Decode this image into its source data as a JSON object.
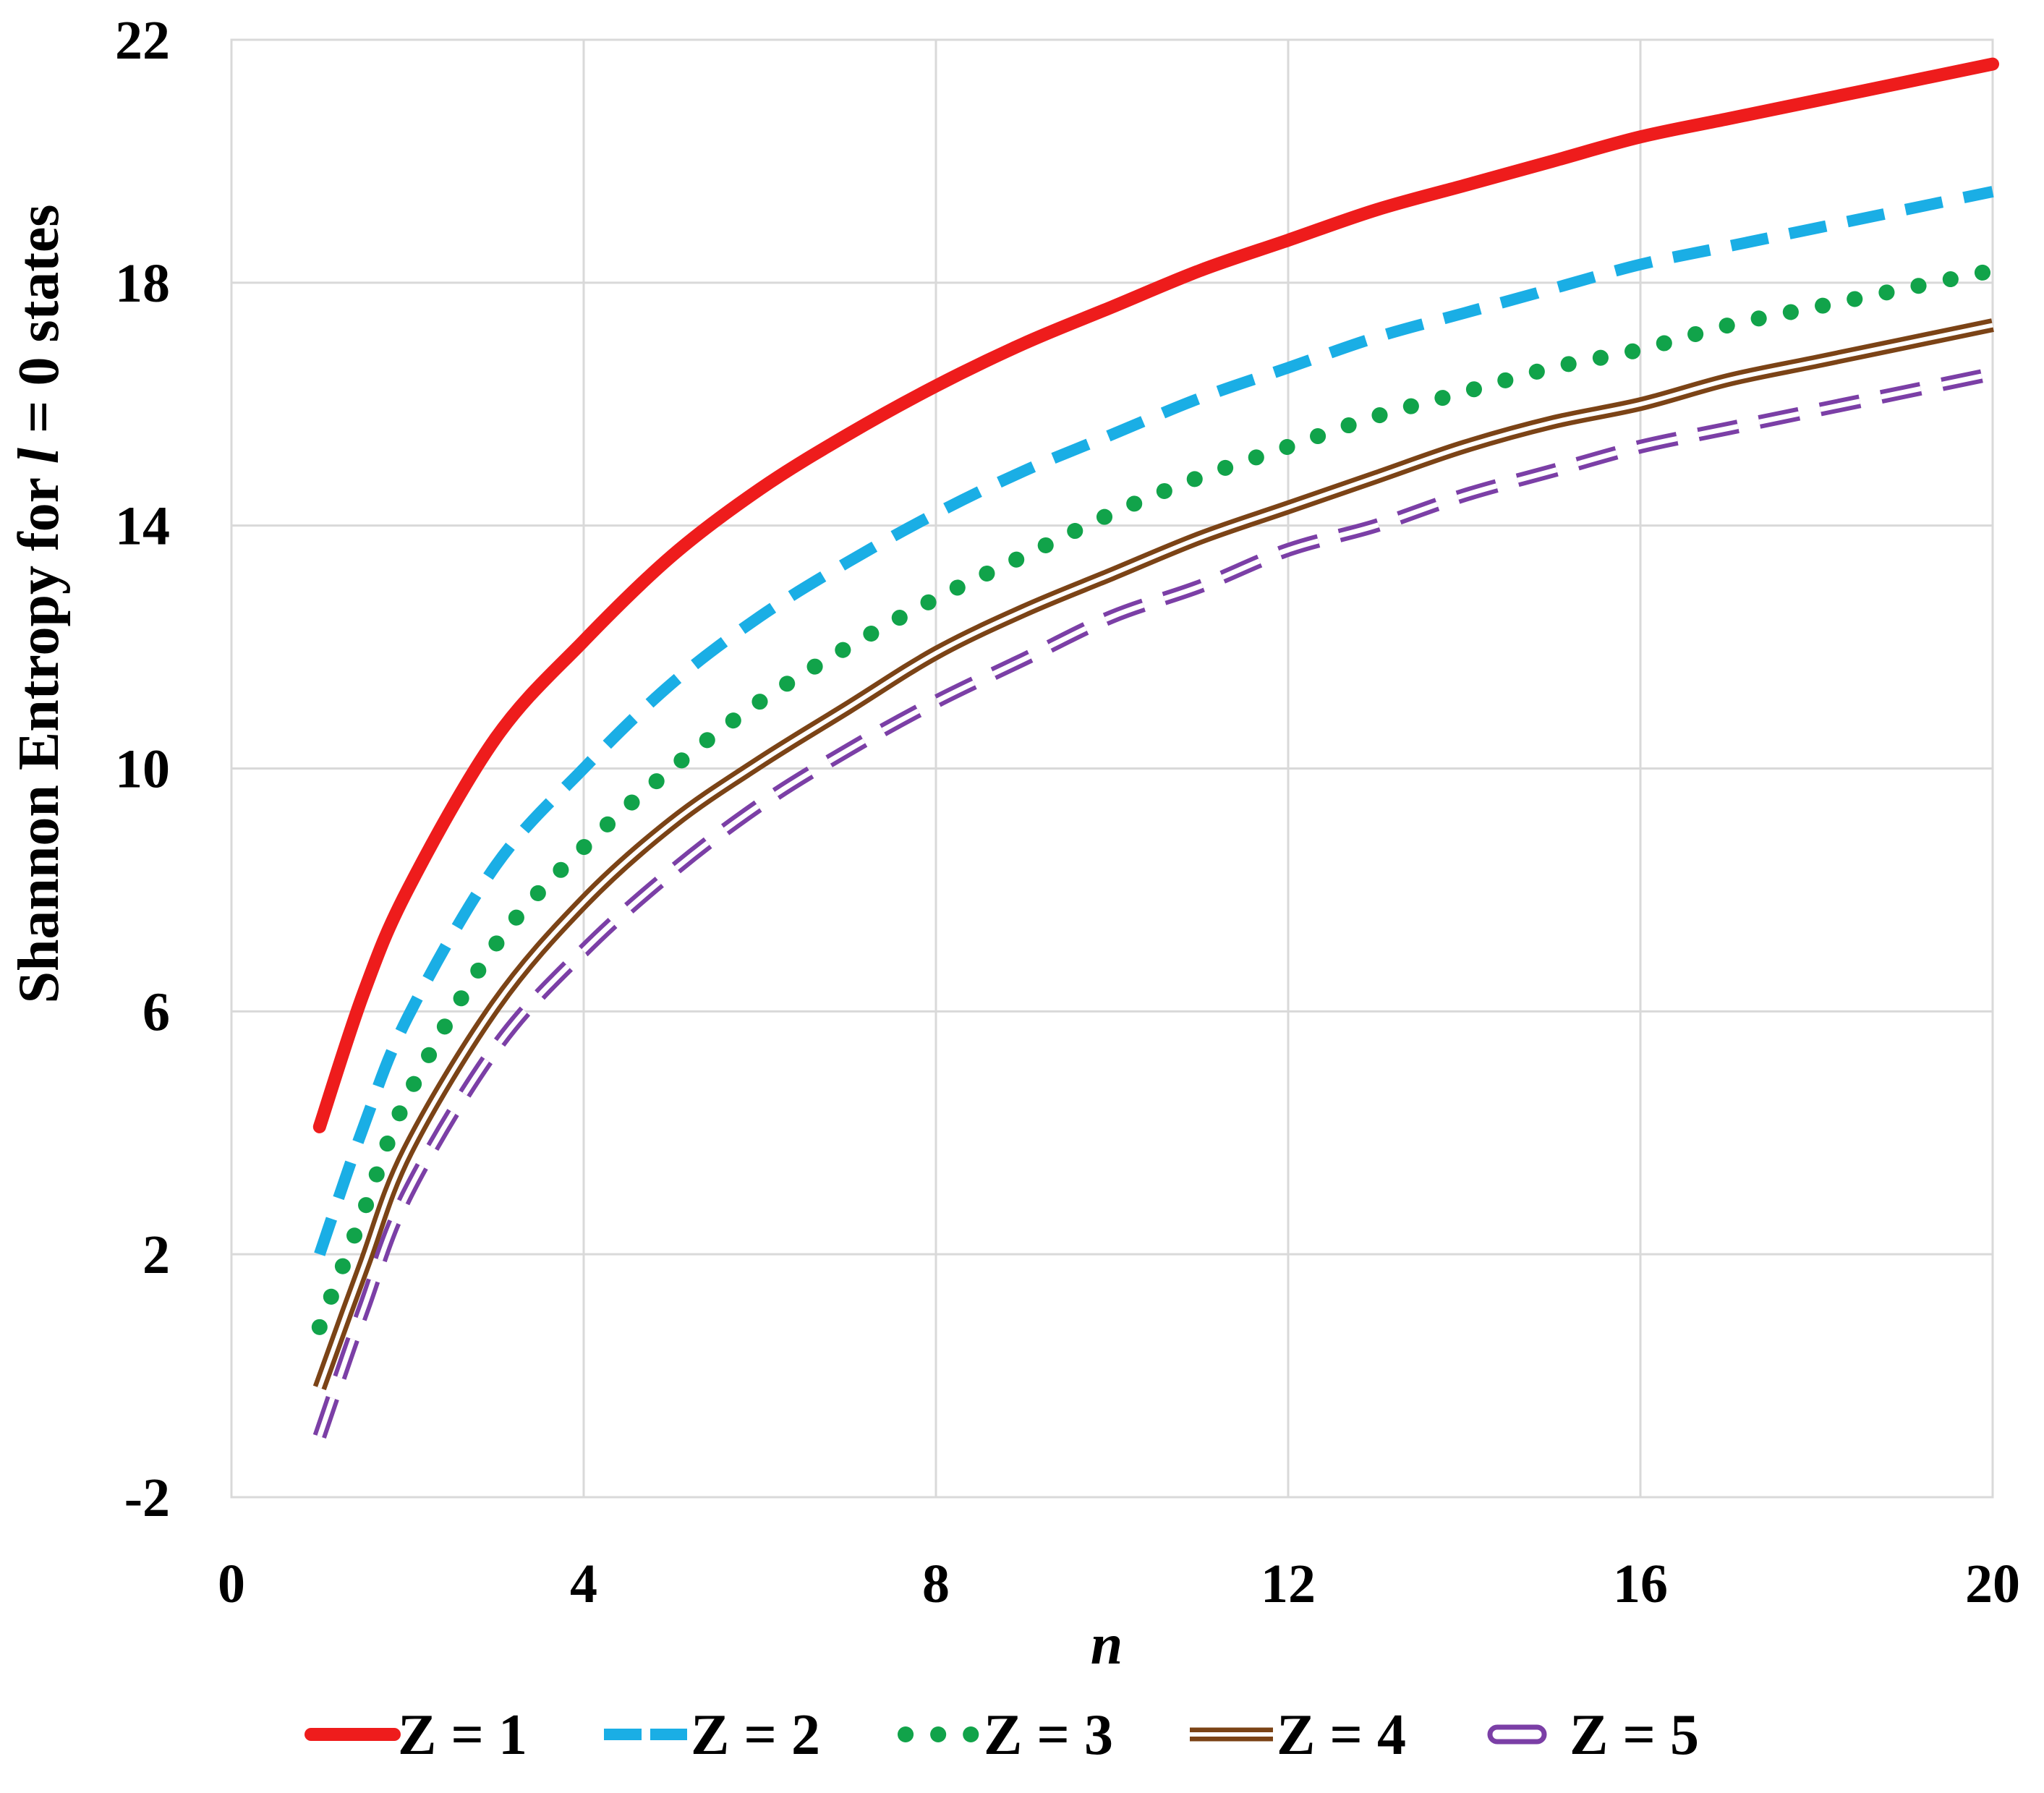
{
  "chart_data": {
    "type": "line",
    "title": "",
    "xlabel": "n",
    "ylabel_parts": [
      "Shannon Entropy for ",
      "l",
      " = 0 states"
    ],
    "xlim": [
      0,
      20
    ],
    "ylim": [
      -2,
      22
    ],
    "xticks": [
      "0",
      "4",
      "8",
      "12",
      "16",
      "20"
    ],
    "yticks": [
      "-2",
      "2",
      "6",
      "10",
      "14",
      "18",
      "22"
    ],
    "grid": true,
    "legend_position": "bottom",
    "x": [
      1,
      1.5,
      2,
      3,
      4,
      5,
      6,
      7,
      8,
      9,
      10,
      11,
      12,
      13,
      14,
      15,
      16,
      17,
      18,
      19,
      20
    ],
    "series": [
      {
        "name": "Z = 1",
        "style": "solid",
        "color": "#ee1c1c",
        "values": [
          4.1,
          6.3,
          8.0,
          10.5,
          12.1,
          13.5,
          14.6,
          15.5,
          16.3,
          17.0,
          17.6,
          18.2,
          18.7,
          19.2,
          19.6,
          20.0,
          20.4,
          20.7,
          21.0,
          21.3,
          21.6
        ]
      },
      {
        "name": "Z = 2",
        "style": "dashed",
        "color": "#1aaee5",
        "values": [
          2.0,
          4.1,
          5.9,
          8.4,
          10.0,
          11.4,
          12.5,
          13.4,
          14.2,
          14.9,
          15.5,
          16.1,
          16.6,
          17.1,
          17.5,
          17.9,
          18.3,
          18.6,
          18.9,
          19.2,
          19.5
        ]
      },
      {
        "name": "Z = 3",
        "style": "dotted",
        "color": "#11a34a",
        "values": [
          0.8,
          2.7,
          4.6,
          7.1,
          8.7,
          10.0,
          11.1,
          12.0,
          12.8,
          13.5,
          14.2,
          14.8,
          15.3,
          15.8,
          16.2,
          16.6,
          16.9,
          17.3,
          17.6,
          17.9,
          18.2
        ]
      },
      {
        "name": "Z = 4",
        "style": "double",
        "color": "#7b4316",
        "values": [
          -0.2,
          1.8,
          3.7,
          6.1,
          7.8,
          9.1,
          10.1,
          11.0,
          11.9,
          12.6,
          13.2,
          13.8,
          14.3,
          14.8,
          15.3,
          15.7,
          16.0,
          16.4,
          16.7,
          17.0,
          17.3
        ]
      },
      {
        "name": "Z = 5",
        "style": "hollow-dashed",
        "color": "#7b3fa6",
        "values": [
          -1.0,
          1.1,
          3.0,
          5.4,
          7.0,
          8.3,
          9.4,
          10.3,
          11.1,
          11.8,
          12.5,
          13.0,
          13.6,
          14.0,
          14.5,
          14.9,
          15.3,
          15.6,
          15.9,
          16.2,
          16.5
        ]
      }
    ]
  }
}
